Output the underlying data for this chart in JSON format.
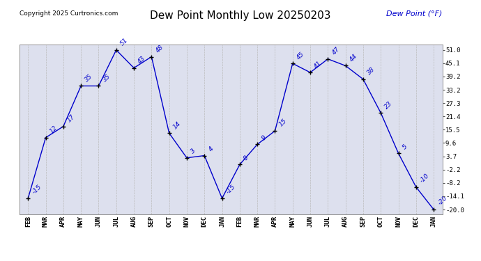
{
  "title": "Dew Point Monthly Low 20250203",
  "copyright": "Copyright 2025 Curtronics.com",
  "ylabel_right": "Dew Point (°F)",
  "x_labels": [
    "FEB",
    "MAR",
    "APR",
    "MAY",
    "JUN",
    "JUL",
    "AUG",
    "SEP",
    "OCT",
    "NOV",
    "DEC",
    "JAN",
    "FEB",
    "MAR",
    "APR",
    "MAY",
    "JUN",
    "JUL",
    "AUG",
    "SEP",
    "OCT",
    "NOV",
    "DEC",
    "JAN"
  ],
  "y_values": [
    -15,
    12,
    17,
    35,
    35,
    51,
    43,
    48,
    14,
    3,
    4,
    -15,
    0,
    9,
    15,
    45,
    41,
    47,
    44,
    38,
    23,
    5,
    -10,
    -20
  ],
  "line_color": "#0000cc",
  "marker_color": "#000000",
  "plot_bg_color": "#dde0ee",
  "outer_bg_color": "#ffffff",
  "grid_color": "#bbbbbb",
  "title_color": "#000000",
  "label_color": "#0000cc",
  "copyright_color": "#000000",
  "ylabel_right_color": "#0000cc",
  "ylim_min": -22,
  "ylim_max": 53.5,
  "yticks": [
    -20.0,
    -14.1,
    -8.2,
    -2.2,
    3.7,
    9.6,
    15.5,
    21.4,
    27.3,
    33.2,
    39.2,
    45.1,
    51.0
  ],
  "title_fontsize": 11,
  "axis_fontsize": 6.5,
  "data_label_fontsize": 6.5,
  "copyright_fontsize": 6.5,
  "ylabel_right_fontsize": 8
}
